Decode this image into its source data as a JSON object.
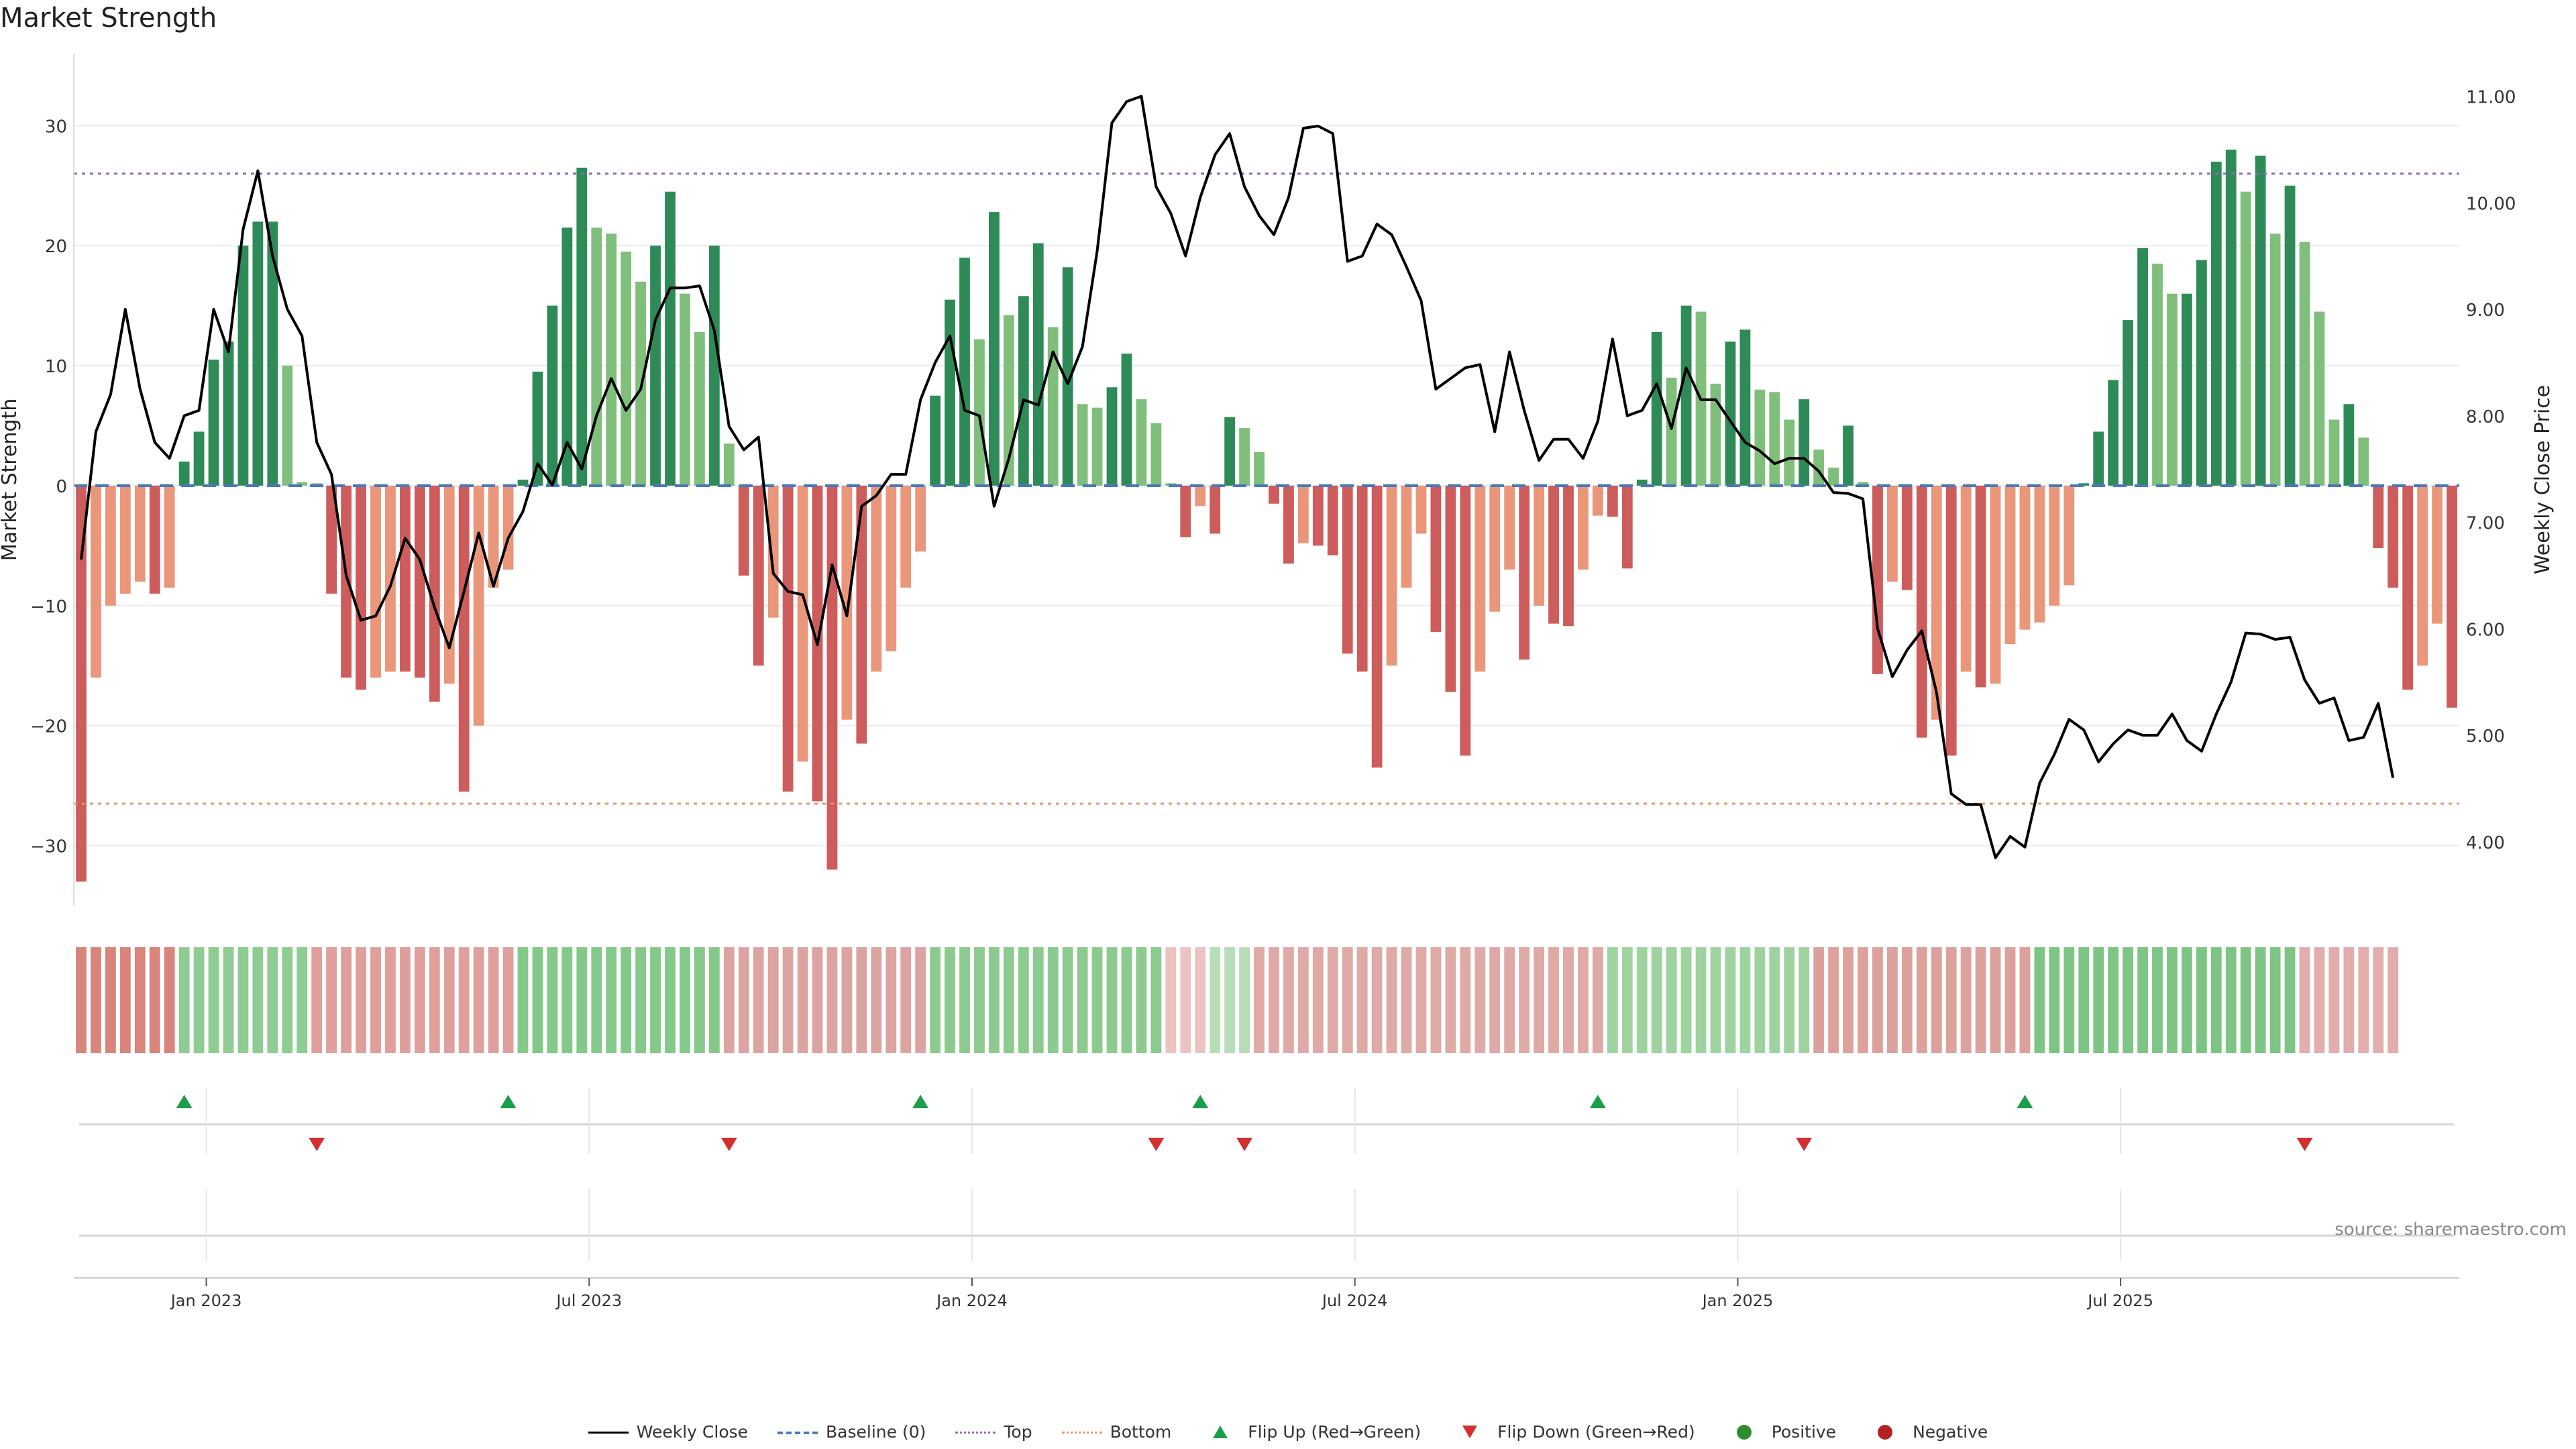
{
  "title": "Market Strength",
  "source_text": "source: sharemaestro.com",
  "legend": {
    "weekly_close": "Weekly Close",
    "baseline": "Baseline (0)",
    "top": "Top",
    "bottom": "Bottom",
    "flip_up": "Flip Up (Red→Green)",
    "flip_down": "Flip Down (Green→Red)",
    "positive": "Positive",
    "negative": "Negative"
  },
  "colors": {
    "bar_green_dark": "#2e8b57",
    "bar_green_light": "#7fbf7b",
    "bar_red_dark": "#cd5c5c",
    "bar_red_light": "#e9967a",
    "close_line": "#000000",
    "baseline": "#4a79b8",
    "top_line": "#8a6bbf",
    "bottom_line": "#e8956a",
    "flip_up": "#1b9e4b",
    "flip_down": "#d32f2f"
  },
  "chart_data": {
    "type": "bar",
    "ylabel": "Market Strength",
    "y2label": "Weekly Close Price",
    "ylim": [
      -35,
      36
    ],
    "y2lim": [
      3.4,
      11.4
    ],
    "yticks": [
      30,
      20,
      10,
      0,
      -10,
      -20,
      -30
    ],
    "yticklabels": [
      "30",
      "20",
      "10",
      "0",
      "−10",
      "−20",
      "−30"
    ],
    "y2ticks": [
      11,
      10,
      9,
      8,
      7,
      6,
      5,
      4
    ],
    "y2ticklabels": [
      "11.00",
      "10.00",
      "9.00",
      "8.00",
      "7.00",
      "6.00",
      "5.00",
      "4.00"
    ],
    "xlabels": [
      {
        "label": "Jan 2023",
        "index": 8.5
      },
      {
        "label": "Jul 2023",
        "index": 34.5
      },
      {
        "label": "Jan 2024",
        "index": 60.5
      },
      {
        "label": "Jul 2024",
        "index": 86.5
      },
      {
        "label": "Jan 2025",
        "index": 112.5
      },
      {
        "label": "Jul 2025",
        "index": 138.5
      }
    ],
    "top_level": 26,
    "bottom_level": -26.5,
    "series": [
      {
        "name": "Market Strength",
        "values": [
          -33,
          -16,
          -10,
          -9,
          -8,
          -9,
          -8.5,
          2,
          4.5,
          10.5,
          12,
          20,
          22,
          22,
          10,
          0.3,
          0.2,
          -9,
          -16,
          -17,
          -16,
          -15.5,
          -15.5,
          -16,
          -18,
          -16.5,
          -25.5,
          -20,
          -8.5,
          -7,
          0.5,
          9.5,
          15,
          21.5,
          26.5,
          21.5,
          21,
          19.5,
          17,
          20,
          24.5,
          16,
          12.8,
          20,
          3.5,
          -7.5,
          -15,
          -11,
          -25.5,
          -23,
          -26.3,
          -32,
          -19.5,
          -21.5,
          -15.5,
          -13.8,
          -8.5,
          -5.5,
          7.5,
          15.5,
          19,
          12.2,
          22.8,
          14.2,
          15.8,
          20.2,
          13.2,
          18.2,
          6.8,
          6.5,
          8.2,
          11,
          7.2,
          5.2,
          0.2,
          -4.3,
          -1.7,
          -4,
          5.7,
          4.8,
          2.8,
          -1.5,
          -6.5,
          -4.8,
          -5,
          -5.8,
          -14,
          -15.5,
          -23.5,
          -15,
          -8.5,
          -4,
          -12.2,
          -17.2,
          -22.5,
          -15.5,
          -10.5,
          -7,
          -14.5,
          -10,
          -11.5,
          -11.7,
          -7,
          -2.5,
          -2.6,
          -6.9,
          0.5,
          12.8,
          9,
          15,
          14.5,
          8.5,
          12,
          13,
          8,
          7.8,
          5.5,
          7.2,
          3,
          1.5,
          5,
          0.3,
          -15.7,
          -8,
          -8.7,
          -21,
          -19.5,
          -22.5,
          -15.5,
          -16.8,
          -16.5,
          -13.2,
          -12,
          -11.4,
          -10,
          -8.3,
          0.2,
          4.5,
          8.8,
          13.8,
          19.8,
          18.5,
          16,
          16,
          18.8,
          27,
          28,
          24.5,
          27.5,
          21,
          25,
          20.3,
          14.5,
          5.5,
          6.8,
          4,
          -5.2,
          -8.5,
          -17,
          -15,
          -11.5,
          -18.5
        ]
      },
      {
        "name": "Weekly Close",
        "values": [
          6.65,
          7.85,
          8.2,
          9.0,
          8.25,
          7.75,
          7.6,
          8.0,
          8.05,
          9.0,
          8.6,
          9.75,
          10.3,
          9.5,
          9.0,
          8.75,
          7.75,
          7.45,
          6.5,
          6.08,
          6.12,
          6.4,
          6.85,
          6.65,
          6.2,
          5.82,
          6.35,
          6.9,
          6.4,
          6.85,
          7.1,
          7.55,
          7.35,
          7.75,
          7.5,
          8.0,
          8.35,
          8.05,
          8.25,
          8.9,
          9.2,
          9.2,
          9.22,
          8.8,
          7.9,
          7.68,
          7.8,
          6.52,
          6.35,
          6.32,
          5.85,
          6.6,
          6.12,
          7.15,
          7.25,
          7.45,
          7.45,
          8.15,
          8.5,
          8.75,
          8.05,
          8.0,
          7.15,
          7.6,
          8.15,
          8.1,
          8.6,
          8.3,
          8.65,
          9.55,
          10.75,
          10.95,
          11.0,
          10.15,
          9.9,
          9.5,
          10.05,
          10.45,
          10.65,
          10.15,
          9.88,
          9.7,
          10.05,
          10.7,
          10.72,
          10.65,
          9.45,
          9.5,
          9.8,
          9.7,
          9.4,
          9.08,
          8.25,
          8.35,
          8.45,
          8.48,
          7.85,
          8.6,
          8.05,
          7.58,
          7.78,
          7.78,
          7.6,
          7.95,
          8.72,
          8.0,
          8.05,
          8.3,
          7.88,
          8.45,
          8.15,
          8.15,
          7.95,
          7.75,
          7.67,
          7.55,
          7.6,
          7.6,
          7.48,
          7.28,
          7.27,
          7.22,
          6.0,
          5.55,
          5.8,
          5.98,
          5.4,
          4.45,
          4.35,
          4.35,
          3.85,
          4.05,
          3.95,
          4.55,
          4.82,
          5.15,
          5.05,
          4.75,
          4.92,
          5.05,
          5.0,
          5.0,
          5.2,
          4.95,
          4.85,
          5.2,
          5.5,
          5.96,
          5.95,
          5.9,
          5.92,
          5.52,
          5.3,
          5.35,
          4.95,
          4.98,
          5.3,
          4.6
        ]
      }
    ],
    "strip_segments": [
      {
        "from": 0,
        "to": 6,
        "color": "#d9847c"
      },
      {
        "from": 7,
        "to": 15,
        "color": "#8fcc93"
      },
      {
        "from": 16,
        "to": 29,
        "color": "#dfa09b"
      },
      {
        "from": 30,
        "to": 43,
        "color": "#84c88a"
      },
      {
        "from": 44,
        "to": 57,
        "color": "#dca4a0"
      },
      {
        "from": 58,
        "to": 73,
        "color": "#8cca90"
      },
      {
        "from": 74,
        "to": 76,
        "color": "#ebc3c0"
      },
      {
        "from": 77,
        "to": 79,
        "color": "#b6ddb6"
      },
      {
        "from": 80,
        "to": 103,
        "color": "#dfa9a5"
      },
      {
        "from": 104,
        "to": 117,
        "color": "#9ed3a0"
      },
      {
        "from": 118,
        "to": 132,
        "color": "#dda19c"
      },
      {
        "from": 133,
        "to": 150,
        "color": "#7ec585"
      },
      {
        "from": 151,
        "to": 157,
        "color": "#e2adaa"
      }
    ],
    "flip_up": [
      7,
      29,
      57,
      76,
      103,
      132
    ],
    "flip_down": [
      16,
      44,
      73,
      79,
      117,
      151
    ]
  }
}
